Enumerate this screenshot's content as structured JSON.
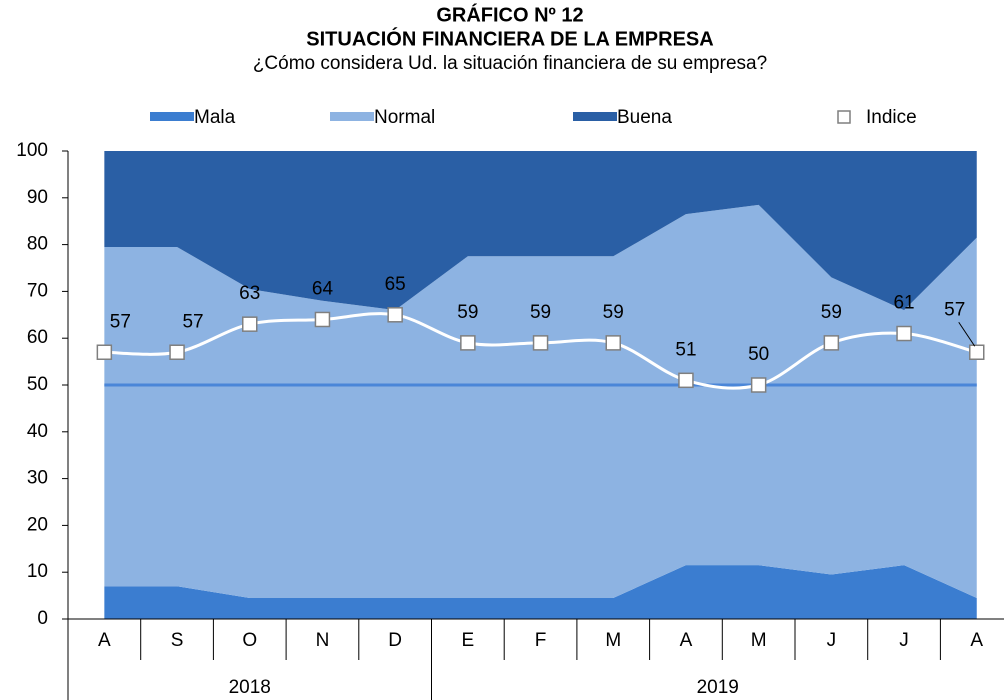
{
  "chart_data": {
    "type": "stacked-area",
    "title": "GRÁFICO Nº 12",
    "subtitle": "SITUACIÓN FINANCIERA DE LA EMPRESA",
    "question": "¿Cómo considera Ud. la situación financiera de su empresa?",
    "categories": [
      "A",
      "S",
      "O",
      "N",
      "D",
      "E",
      "F",
      "M",
      "A",
      "M",
      "J",
      "J",
      "A"
    ],
    "groups": [
      {
        "label": "2018",
        "start": 0,
        "end": 4
      },
      {
        "label": "2019",
        "start": 5,
        "end": 12
      }
    ],
    "series": [
      {
        "name": "Mala",
        "color": "#3b7dd0",
        "values": [
          7,
          7,
          4.5,
          4.5,
          4.5,
          4.5,
          4.5,
          4.5,
          11.5,
          11.5,
          9.5,
          11.5,
          4.5
        ]
      },
      {
        "name": "Normal",
        "color": "#8db3e2",
        "values": [
          72.5,
          72.5,
          66,
          63.5,
          61.5,
          73,
          73,
          73,
          75,
          77,
          63.5,
          54.5,
          77
        ]
      },
      {
        "name": "Buena",
        "color": "#2a5fa5",
        "values": [
          20.5,
          20.5,
          29.5,
          32,
          34,
          22.5,
          22.5,
          22.5,
          13.5,
          11.5,
          27,
          34,
          18.5
        ]
      }
    ],
    "index": {
      "name": "Indice",
      "color": "#ffffff",
      "values": [
        57,
        57,
        63,
        64,
        65,
        59,
        59,
        59,
        51,
        50,
        59,
        61,
        57
      ]
    },
    "reference_line": {
      "value": 50,
      "color": "#4a86d8"
    },
    "ylim": [
      0,
      100
    ],
    "yticks": [
      0,
      10,
      20,
      30,
      40,
      50,
      60,
      70,
      80,
      90,
      100
    ],
    "grid": false
  }
}
